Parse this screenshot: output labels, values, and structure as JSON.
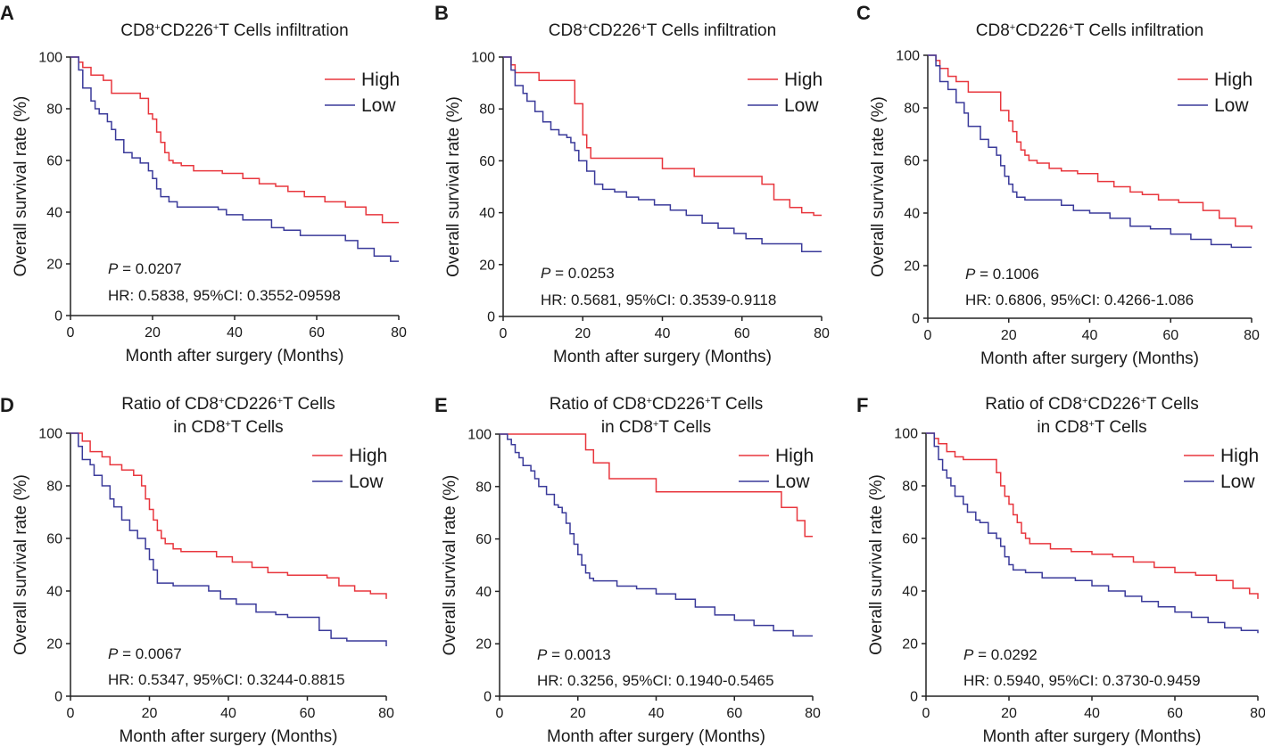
{
  "figure": {
    "panels": [
      "A",
      "B",
      "C",
      "D",
      "E",
      "F"
    ]
  },
  "colors": {
    "high": "#e8363d",
    "low": "#3a3a9a",
    "axis": "#222222"
  },
  "chart_data": [
    {
      "panel": "A",
      "type": "line",
      "title_lines": [
        [
          {
            "t": "CD8"
          },
          {
            "t": "+",
            "sup": true
          },
          {
            "t": "CD226"
          },
          {
            "t": "+",
            "sup": true
          },
          {
            "t": "T Cells infiltration"
          }
        ]
      ],
      "xlabel": "Month after surgery (Months)",
      "ylabel": "Overall survival rate (%)",
      "xlim": [
        0,
        80
      ],
      "ylim": [
        0,
        100
      ],
      "xticks": [
        "0",
        "20",
        "40",
        "60",
        "80"
      ],
      "yticks": [
        "0",
        "20",
        "40",
        "60",
        "80",
        "100"
      ],
      "legend": [
        "High",
        "Low"
      ],
      "p_label": "P",
      "p_value": " = 0.0207",
      "hr_text": "HR: 0.5838, 95%CI: 0.3552-09598",
      "series": [
        {
          "name": "High",
          "x": [
            0,
            2,
            3,
            5,
            8,
            10,
            14,
            17,
            19,
            20,
            21,
            22,
            23,
            24,
            25,
            27,
            30,
            33,
            37,
            42,
            46,
            50,
            53,
            57,
            62,
            67,
            72,
            76,
            80
          ],
          "y": [
            100,
            98,
            96,
            93,
            91,
            86,
            86,
            84,
            78,
            76,
            71,
            67,
            63,
            60,
            59,
            58,
            56,
            56,
            55,
            53,
            51,
            50,
            48,
            46,
            44,
            42,
            39,
            36,
            36
          ]
        },
        {
          "name": "Low",
          "x": [
            0,
            2,
            3,
            5,
            6,
            7,
            9,
            10,
            11,
            13,
            15,
            17,
            19,
            20,
            21,
            22,
            24,
            26,
            30,
            33,
            36,
            38,
            42,
            45,
            49,
            52,
            56,
            59,
            63,
            67,
            70,
            74,
            78,
            80
          ],
          "y": [
            100,
            95,
            88,
            83,
            80,
            78,
            75,
            72,
            68,
            63,
            61,
            59,
            56,
            53,
            49,
            46,
            44,
            42,
            42,
            42,
            41,
            39,
            37,
            37,
            34,
            33,
            31,
            31,
            31,
            29,
            26,
            23,
            21,
            21
          ]
        }
      ]
    },
    {
      "panel": "B",
      "type": "line",
      "title_lines": [
        [
          {
            "t": "CD8"
          },
          {
            "t": "+",
            "sup": true
          },
          {
            "t": "CD226"
          },
          {
            "t": "+",
            "sup": true
          },
          {
            "t": "T Cells infiltration"
          }
        ]
      ],
      "xlabel": "Month after surgery (Months)",
      "ylabel": "Overall survival rate (%)",
      "xlim": [
        0,
        80
      ],
      "ylim": [
        0,
        100
      ],
      "xticks": [
        "0",
        "20",
        "40",
        "60",
        "80"
      ],
      "yticks": [
        "0",
        "20",
        "40",
        "60",
        "80",
        "100"
      ],
      "legend": [
        "High",
        "Low"
      ],
      "p_label": "P",
      "p_value": " = 0.0253",
      "hr_text": "HR: 0.5681, 95%CI: 0.3539-0.9118",
      "series": [
        {
          "name": "High",
          "x": [
            0,
            2,
            3,
            9,
            18,
            20,
            21,
            22,
            25,
            40,
            48,
            65,
            68,
            72,
            75,
            78,
            80
          ],
          "y": [
            100,
            97,
            94,
            91,
            82,
            70,
            65,
            61,
            61,
            57,
            54,
            51,
            45,
            42,
            40,
            39,
            39
          ]
        },
        {
          "name": "Low",
          "x": [
            0,
            2,
            3,
            5,
            6,
            8,
            10,
            12,
            14,
            16,
            17,
            18,
            19,
            21,
            23,
            25,
            28,
            31,
            34,
            38,
            42,
            46,
            50,
            54,
            58,
            61,
            65,
            70,
            75,
            80
          ],
          "y": [
            100,
            95,
            89,
            86,
            83,
            79,
            75,
            72,
            70,
            69,
            67,
            64,
            60,
            56,
            51,
            49,
            48,
            46,
            45,
            43,
            41,
            39,
            36,
            34,
            32,
            30,
            28,
            28,
            25,
            25
          ]
        }
      ]
    },
    {
      "panel": "C",
      "type": "line",
      "title_lines": [
        [
          {
            "t": "CD8"
          },
          {
            "t": "+",
            "sup": true
          },
          {
            "t": "CD226"
          },
          {
            "t": "+",
            "sup": true
          },
          {
            "t": "T Cells infiltration"
          }
        ]
      ],
      "xlabel": "Month after surgery (Months)",
      "ylabel": "Overall survival rate (%)",
      "xlim": [
        0,
        80
      ],
      "ylim": [
        0,
        100
      ],
      "xticks": [
        "0",
        "20",
        "40",
        "60",
        "80"
      ],
      "yticks": [
        "0",
        "20",
        "40",
        "60",
        "80",
        "100"
      ],
      "legend": [
        "High",
        "Low"
      ],
      "p_label": "P",
      "p_value": " = 0.1006",
      "hr_text": "HR: 0.6806, 95%CI: 0.4266-1.086",
      "series": [
        {
          "name": "High",
          "x": [
            0,
            2,
            3,
            5,
            7,
            10,
            17,
            18,
            20,
            21,
            22,
            23,
            24,
            25,
            27,
            30,
            33,
            37,
            42,
            46,
            50,
            53,
            57,
            62,
            68,
            72,
            76,
            80
          ],
          "y": [
            100,
            98,
            95,
            92,
            90,
            86,
            86,
            79,
            75,
            71,
            67,
            64,
            62,
            60,
            59,
            57,
            56,
            55,
            52,
            50,
            48,
            47,
            45,
            44,
            41,
            38,
            35,
            34
          ]
        },
        {
          "name": "Low",
          "x": [
            0,
            2,
            3,
            5,
            7,
            9,
            10,
            13,
            15,
            17,
            18,
            19,
            20,
            21,
            22,
            24,
            26,
            30,
            33,
            36,
            40,
            45,
            50,
            55,
            60,
            65,
            70,
            75,
            80
          ],
          "y": [
            100,
            96,
            90,
            87,
            82,
            78,
            73,
            68,
            65,
            62,
            58,
            54,
            51,
            48,
            46,
            45,
            45,
            45,
            43,
            41,
            40,
            38,
            35,
            34,
            32,
            30,
            28,
            27,
            27
          ]
        }
      ]
    },
    {
      "panel": "D",
      "type": "line",
      "title_lines": [
        [
          {
            "t": "Ratio of CD8"
          },
          {
            "t": "+",
            "sup": true
          },
          {
            "t": "CD226"
          },
          {
            "t": "+",
            "sup": true
          },
          {
            "t": "T Cells"
          }
        ],
        [
          {
            "t": "in CD8"
          },
          {
            "t": "+",
            "sup": true
          },
          {
            "t": "T Cells"
          }
        ]
      ],
      "xlabel": "Month after surgery (Months)",
      "ylabel": "Overall survival rate (%)",
      "xlim": [
        0,
        80
      ],
      "ylim": [
        0,
        100
      ],
      "xticks": [
        "0",
        "20",
        "40",
        "60",
        "80"
      ],
      "yticks": [
        "0",
        "20",
        "40",
        "60",
        "80",
        "100"
      ],
      "legend": [
        "High",
        "Low"
      ],
      "p_label": "P",
      "p_value": " = 0.0067",
      "hr_text": "HR: 0.5347, 95%CI: 0.3244-0.8815",
      "series": [
        {
          "name": "High",
          "x": [
            0,
            3,
            5,
            8,
            10,
            13,
            16,
            18,
            19,
            20,
            21,
            22,
            23,
            24,
            26,
            28,
            32,
            37,
            41,
            46,
            50,
            55,
            60,
            65,
            68,
            72,
            76,
            80
          ],
          "y": [
            100,
            97,
            93,
            91,
            88,
            86,
            84,
            80,
            75,
            71,
            67,
            63,
            60,
            58,
            56,
            55,
            55,
            53,
            51,
            49,
            47,
            46,
            46,
            45,
            42,
            40,
            39,
            37
          ]
        },
        {
          "name": "Low",
          "x": [
            0,
            2,
            3,
            5,
            6,
            8,
            10,
            11,
            13,
            15,
            17,
            19,
            20,
            21,
            22,
            26,
            30,
            35,
            38,
            42,
            47,
            52,
            55,
            60,
            63,
            66,
            70,
            73,
            80
          ],
          "y": [
            100,
            95,
            90,
            88,
            84,
            80,
            75,
            72,
            67,
            63,
            60,
            56,
            52,
            48,
            43,
            42,
            42,
            40,
            37,
            35,
            32,
            31,
            30,
            30,
            25,
            22,
            21,
            21,
            19
          ]
        }
      ]
    },
    {
      "panel": "E",
      "type": "line",
      "title_lines": [
        [
          {
            "t": "Ratio of CD8"
          },
          {
            "t": "+",
            "sup": true
          },
          {
            "t": "CD226"
          },
          {
            "t": "+",
            "sup": true
          },
          {
            "t": "T Cells"
          }
        ],
        [
          {
            "t": "in CD8"
          },
          {
            "t": "+",
            "sup": true
          },
          {
            "t": "T Cells"
          }
        ]
      ],
      "xlabel": "Month after surgery (Months)",
      "ylabel": "Overall survival rate (%)",
      "xlim": [
        0,
        80
      ],
      "ylim": [
        0,
        100
      ],
      "xticks": [
        "0",
        "20",
        "40",
        "60",
        "80"
      ],
      "yticks": [
        "0",
        "20",
        "40",
        "60",
        "80",
        "100"
      ],
      "legend": [
        "High",
        "Low"
      ],
      "p_label": "P",
      "p_value": " = 0.0013",
      "hr_text": "HR: 0.3256, 95%CI: 0.1940-0.5465",
      "series": [
        {
          "name": "High",
          "x": [
            0,
            20,
            22,
            24,
            28,
            40,
            65,
            72,
            76,
            78,
            80
          ],
          "y": [
            100,
            100,
            94,
            89,
            83,
            78,
            78,
            72,
            67,
            61,
            61
          ]
        },
        {
          "name": "Low",
          "x": [
            0,
            2,
            3,
            4,
            5,
            6,
            8,
            9,
            10,
            12,
            14,
            15,
            16,
            17,
            18,
            19,
            20,
            21,
            22,
            23,
            24,
            26,
            30,
            35,
            40,
            45,
            50,
            55,
            60,
            65,
            70,
            75,
            80
          ],
          "y": [
            100,
            98,
            96,
            93,
            91,
            88,
            86,
            83,
            80,
            77,
            73,
            72,
            70,
            66,
            62,
            58,
            54,
            50,
            47,
            45,
            44,
            44,
            42,
            41,
            39,
            37,
            34,
            31,
            29,
            27,
            25,
            23,
            23
          ]
        }
      ]
    },
    {
      "panel": "F",
      "type": "line",
      "title_lines": [
        [
          {
            "t": "Ratio of CD8"
          },
          {
            "t": "+",
            "sup": true
          },
          {
            "t": "CD226"
          },
          {
            "t": "+",
            "sup": true
          },
          {
            "t": "T Cells"
          }
        ],
        [
          {
            "t": "in CD8"
          },
          {
            "t": "+",
            "sup": true
          },
          {
            "t": "T Cells"
          }
        ]
      ],
      "xlabel": "Month after surgery (Months)",
      "ylabel": "Overall survival rate (%)",
      "xlim": [
        0,
        80
      ],
      "ylim": [
        0,
        100
      ],
      "xticks": [
        "0",
        "20",
        "40",
        "60",
        "80"
      ],
      "yticks": [
        "0",
        "20",
        "40",
        "60",
        "80",
        "100"
      ],
      "legend": [
        "High",
        "Low"
      ],
      "p_label": "P",
      "p_value": " = 0.0292",
      "hr_text": "HR: 0.5940, 95%CI: 0.3730-0.9459",
      "series": [
        {
          "name": "High",
          "x": [
            0,
            2,
            3,
            5,
            7,
            9,
            11,
            17,
            18,
            19,
            20,
            21,
            22,
            23,
            24,
            25,
            26,
            30,
            35,
            40,
            45,
            50,
            55,
            60,
            65,
            70,
            74,
            78,
            80
          ],
          "y": [
            100,
            98,
            96,
            93,
            91,
            90,
            90,
            85,
            80,
            76,
            73,
            69,
            66,
            62,
            60,
            58,
            58,
            56,
            55,
            54,
            53,
            51,
            49,
            47,
            46,
            44,
            41,
            39,
            37
          ]
        },
        {
          "name": "Low",
          "x": [
            0,
            2,
            3,
            4,
            5,
            6,
            7,
            9,
            10,
            12,
            13,
            15,
            17,
            18,
            19,
            20,
            21,
            24,
            28,
            32,
            36,
            40,
            44,
            48,
            52,
            56,
            60,
            64,
            68,
            72,
            76,
            80
          ],
          "y": [
            100,
            95,
            90,
            86,
            83,
            80,
            76,
            73,
            70,
            67,
            66,
            62,
            60,
            57,
            53,
            50,
            48,
            47,
            45,
            45,
            44,
            42,
            40,
            38,
            36,
            34,
            32,
            30,
            28,
            26,
            25,
            24
          ]
        }
      ]
    }
  ]
}
